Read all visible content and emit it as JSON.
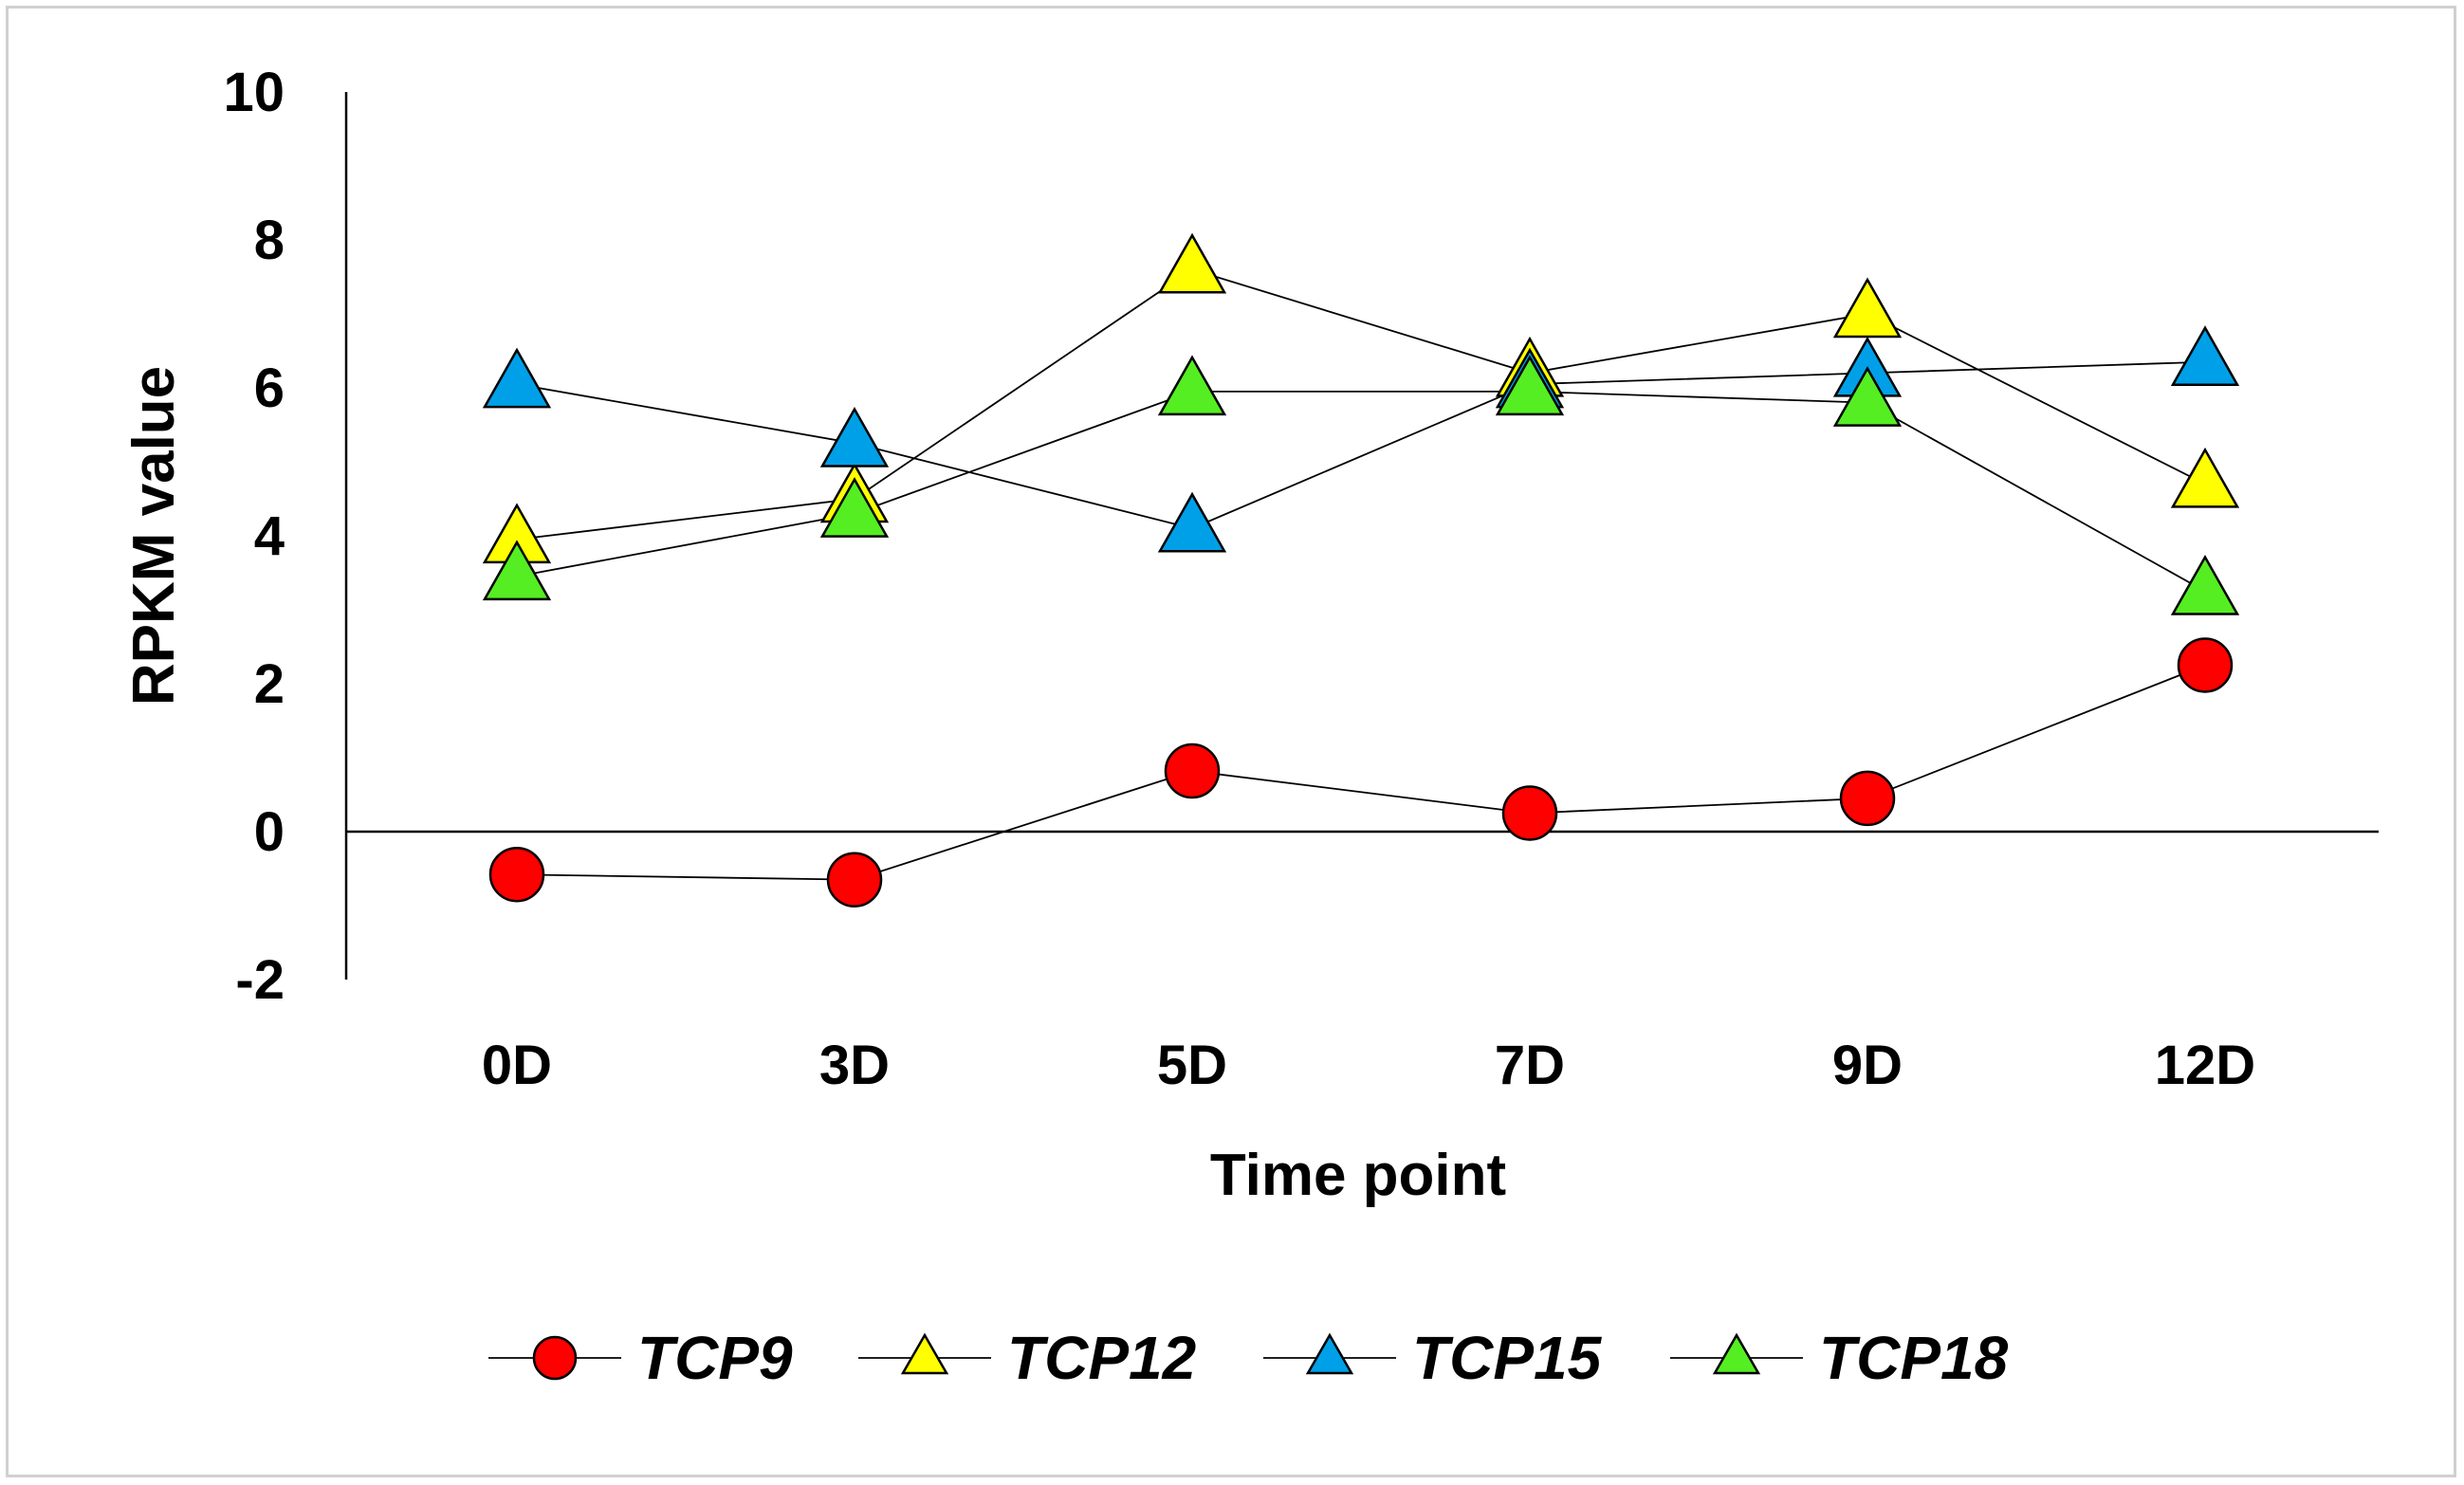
{
  "chart_data": {
    "type": "line",
    "title": "",
    "xlabel": "Time point",
    "ylabel": "RPKM value",
    "categories": [
      "0D",
      "3D",
      "5D",
      "7D",
      "9D",
      "12D"
    ],
    "ylim": [
      -2,
      10
    ],
    "yticks": [
      -2,
      0,
      2,
      4,
      6,
      8,
      10
    ],
    "legend_position": "bottom",
    "series": [
      {
        "name": "TCP9",
        "marker": "circle",
        "color": "#ff0000",
        "values": [
          -0.58,
          -0.65,
          0.82,
          0.25,
          0.45,
          2.25
        ]
      },
      {
        "name": "TCP12",
        "marker": "triangle",
        "color": "#ffff00",
        "values": [
          3.95,
          4.5,
          7.6,
          6.2,
          7.0,
          4.7
        ]
      },
      {
        "name": "TCP15",
        "marker": "triangle",
        "color": "#00a0e8",
        "values": [
          6.05,
          5.25,
          4.1,
          6.05,
          6.2,
          6.35
        ]
      },
      {
        "name": "TCP18",
        "marker": "triangle",
        "color": "#55ee22",
        "values": [
          3.45,
          4.3,
          5.95,
          5.95,
          5.8,
          3.25
        ]
      }
    ]
  }
}
